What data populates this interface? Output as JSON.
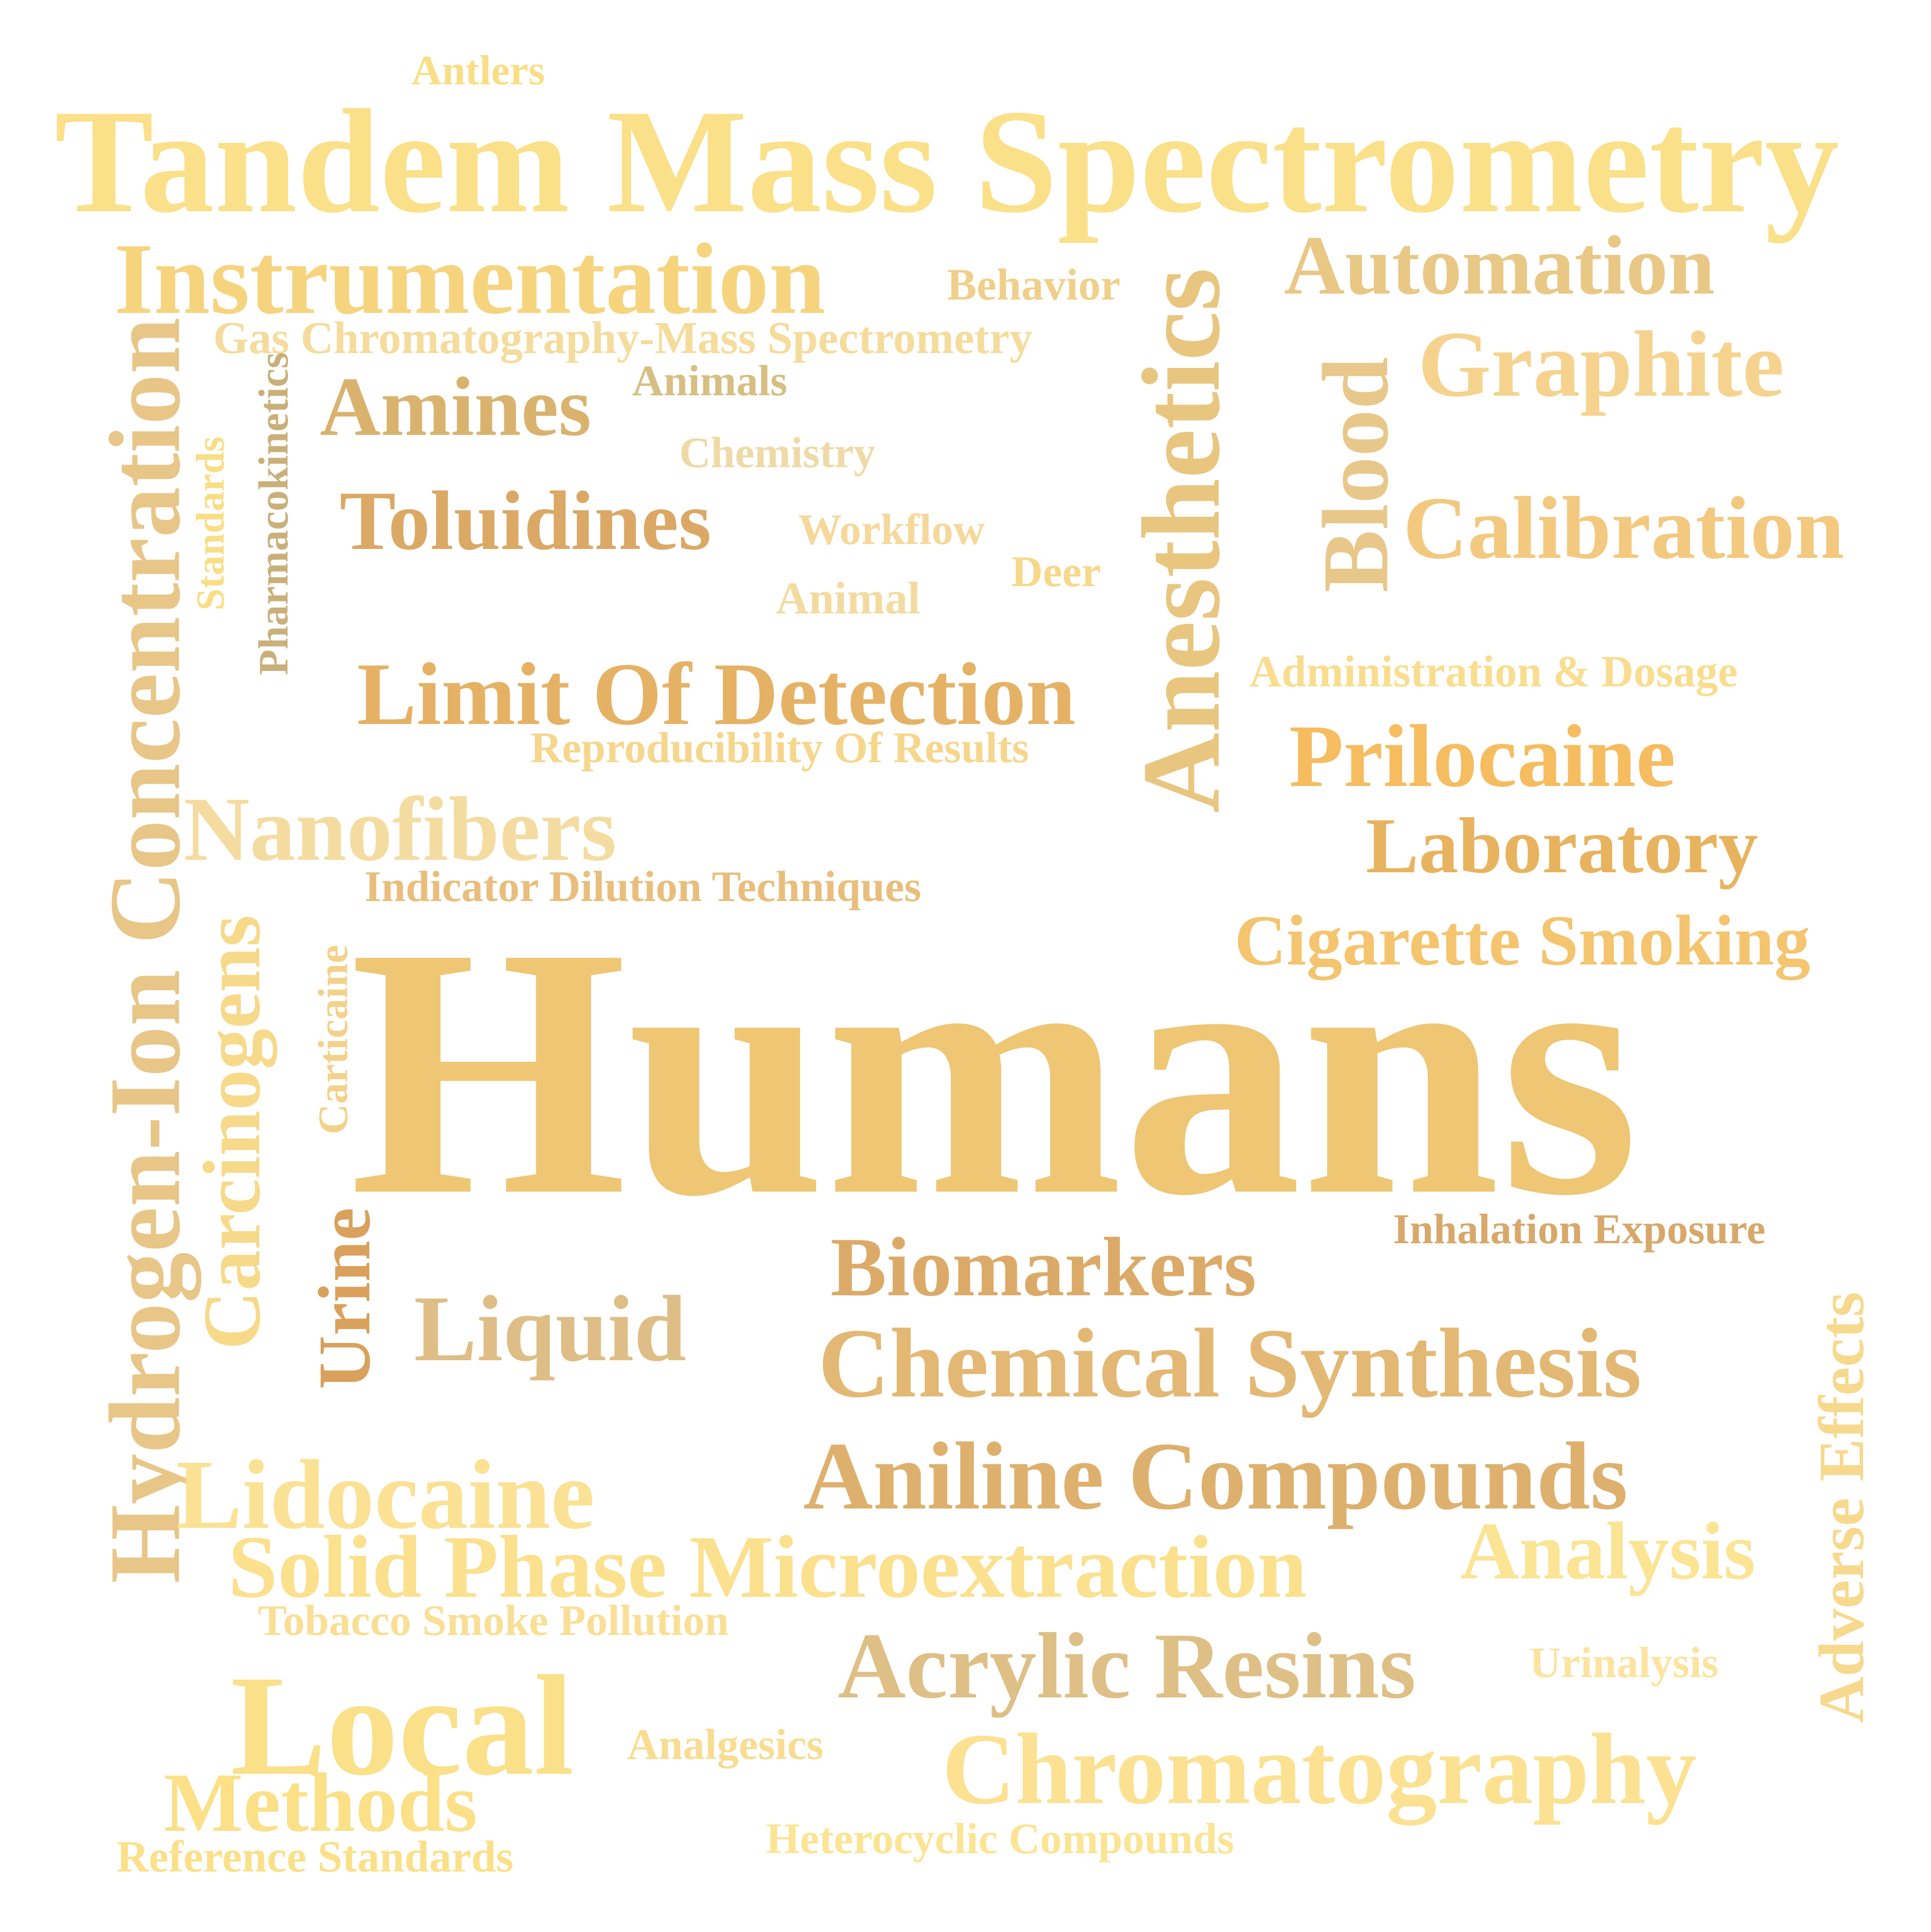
{
  "words": [
    {
      "key": "antlers",
      "text": "Antlers",
      "color": "#F9DE86"
    },
    {
      "key": "tandem_mass_spectrometry",
      "text": "Tandem Mass Spectrometry",
      "color": "#FBE08A"
    },
    {
      "key": "instrumentation",
      "text": "Instrumentation",
      "color": "#F6D47E"
    },
    {
      "key": "behavior",
      "text": "Behavior",
      "color": "#EFCF8A"
    },
    {
      "key": "gas_chromatography_ms",
      "text": "Gas Chromatography-Mass Spectrometry",
      "color": "#F5DC9C"
    },
    {
      "key": "automation",
      "text": "Automation",
      "color": "#E9C785"
    },
    {
      "key": "graphite",
      "text": "Graphite",
      "color": "#F5D38F"
    },
    {
      "key": "anesthetics",
      "text": "Anesthetics",
      "color": "#E9C67F"
    },
    {
      "key": "blood",
      "text": "Blood",
      "color": "#E8C88A"
    },
    {
      "key": "concentration_hydrogen",
      "text": "Hydrogen-Ion Concentration",
      "color": "#E8C688"
    },
    {
      "key": "pharmacokinetics",
      "text": "Pharmacokinetics",
      "color": "#C9B07B"
    },
    {
      "key": "standards",
      "text": "Standards",
      "color": "#F9DE86"
    },
    {
      "key": "amines",
      "text": "Amines",
      "color": "#D9B36E"
    },
    {
      "key": "animals",
      "text": "Animals",
      "color": "#D7BE82"
    },
    {
      "key": "chemistry",
      "text": "Chemistry",
      "color": "#EFD9A6"
    },
    {
      "key": "toluidines",
      "text": "Toluidines",
      "color": "#DBA865"
    },
    {
      "key": "workflow",
      "text": "Workflow",
      "color": "#F5D89B"
    },
    {
      "key": "deer",
      "text": "Deer",
      "color": "#F7D88A"
    },
    {
      "key": "animal",
      "text": "Animal",
      "color": "#F3DBA0"
    },
    {
      "key": "calibration",
      "text": "Calibration",
      "color": "#F3C97F"
    },
    {
      "key": "limit_of_detection",
      "text": "Limit Of Detection",
      "color": "#E5B265"
    },
    {
      "key": "admin_dosage",
      "text": "Administration & Dosage",
      "color": "#F9DD8F"
    },
    {
      "key": "reproducibility",
      "text": "Reproducibility Of Results",
      "color": "#F6D68C"
    },
    {
      "key": "prilocaine",
      "text": "Prilocaine",
      "color": "#F6BC60"
    },
    {
      "key": "nanofibers",
      "text": "Nanofibers",
      "color": "#F4DCA0"
    },
    {
      "key": "laboratory",
      "text": "Laboratory",
      "color": "#E8B35E"
    },
    {
      "key": "indicator_dilution",
      "text": "Indicator Dilution Techniques",
      "color": "#E9BE7C"
    },
    {
      "key": "cigarette_smoking",
      "text": "Cigarette Smoking",
      "color": "#F4C46E"
    },
    {
      "key": "carcinogens",
      "text": "Carcinogens",
      "color": "#F7D98A"
    },
    {
      "key": "carticaine",
      "text": "Carticaine",
      "color": "#F4D18A"
    },
    {
      "key": "humans",
      "text": "Humans",
      "color": "#EEC674"
    },
    {
      "key": "urine",
      "text": "Urine",
      "color": "#D9A15C"
    },
    {
      "key": "inhalation_exposure",
      "text": "Inhalation Exposure",
      "color": "#D7A86A"
    },
    {
      "key": "biomarkers",
      "text": "Biomarkers",
      "color": "#DCAA68"
    },
    {
      "key": "liquid",
      "text": "Liquid",
      "color": "#DEBE86"
    },
    {
      "key": "chemical_synthesis",
      "text": "Chemical Synthesis",
      "color": "#E3B874"
    },
    {
      "key": "adverse_effects",
      "text": "Adverse Effects",
      "color": "#F7D98E"
    },
    {
      "key": "lidocaine",
      "text": "Lidocaine",
      "color": "#FBE194"
    },
    {
      "key": "aniline_compounds",
      "text": "Aniline Compounds",
      "color": "#DDB06D"
    },
    {
      "key": "solid_phase",
      "text": "Solid Phase Microextraction",
      "color": "#FBE08E"
    },
    {
      "key": "analysis",
      "text": "Analysis",
      "color": "#FBE493"
    },
    {
      "key": "tobacco_smoke",
      "text": "Tobacco Smoke Pollution",
      "color": "#F9DF96"
    },
    {
      "key": "acrylic_resins",
      "text": "Acrylic Resins",
      "color": "#DEBF86"
    },
    {
      "key": "urinalysis",
      "text": "Urinalysis",
      "color": "#FBE4A0"
    },
    {
      "key": "local",
      "text": "Local",
      "color": "#FBE08A"
    },
    {
      "key": "analgesics",
      "text": "Analgesics",
      "color": "#F8DC91"
    },
    {
      "key": "chromatography",
      "text": "Chromatography",
      "color": "#FBE191"
    },
    {
      "key": "methods",
      "text": "Methods",
      "color": "#FBE088"
    },
    {
      "key": "heterocyclic",
      "text": "Heterocyclic Compounds",
      "color": "#FBE493"
    },
    {
      "key": "reference_standards",
      "text": "Reference Standards",
      "color": "#FBE08A"
    }
  ]
}
